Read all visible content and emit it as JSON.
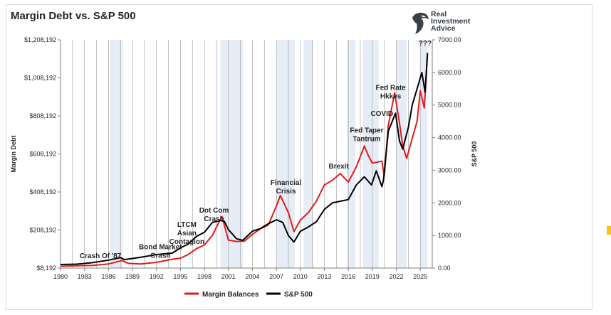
{
  "chart_data": {
    "type": "line",
    "title": "Margin Debt vs. S&P 500",
    "ylabel_left": "Margin Debt",
    "ylabel_right": "S&P 500",
    "xlim": [
      1980,
      2026.5
    ],
    "ylim_left": [
      8192,
      1208192
    ],
    "ylim_right": [
      0,
      7000
    ],
    "x_ticks": [
      "1980",
      "1983",
      "1986",
      "1989",
      "1992",
      "1995",
      "1998",
      "2001",
      "2004",
      "2007",
      "2010",
      "2013",
      "2016",
      "2019",
      "2022",
      "2025"
    ],
    "y_left_ticks": [
      "$8,192",
      "$208,192",
      "$408,192",
      "$608,192",
      "$808,192",
      "$1,008,192",
      "$1,208,192"
    ],
    "y_right_ticks": [
      "0.00",
      "1000.00",
      "2000.00",
      "3000.00",
      "4000.00",
      "5000.00",
      "6000.00",
      "7000.00"
    ],
    "recession_shading": [
      [
        1986.2,
        1987.8
      ],
      [
        2000,
        2002.8
      ],
      [
        2007,
        2009.3
      ],
      [
        2010.4,
        2011.6
      ],
      [
        2015.8,
        2016.9
      ],
      [
        2017.8,
        2019.8
      ],
      [
        2022,
        2023.3
      ],
      [
        2025,
        2025.9
      ]
    ],
    "series": [
      {
        "name": "Margin Balances",
        "axis": "left",
        "color": "#e41a1c",
        "x": [
          1980,
          1982,
          1984,
          1986,
          1987.7,
          1988.5,
          1990,
          1992,
          1994,
          1995,
          1996,
          1997,
          1998,
          1999,
          1999.7,
          2000.2,
          2001,
          2002,
          2003,
          2004,
          2005,
          2006,
          2007,
          2007.5,
          2008.5,
          2009.2,
          2010,
          2011,
          2012,
          2013,
          2014,
          2015,
          2016,
          2017,
          2018,
          2018.5,
          2019,
          2020.2,
          2020.5,
          2021,
          2021.8,
          2022.4,
          2022.8,
          2023.3,
          2024,
          2024.6,
          2025,
          2025.5,
          2025.9
        ],
        "y": [
          18000,
          20000,
          22000,
          30000,
          48000,
          33000,
          30000,
          38000,
          55000,
          60000,
          80000,
          110000,
          130000,
          180000,
          240000,
          278000,
          155000,
          148000,
          150000,
          185000,
          215000,
          235000,
          335000,
          390000,
          300000,
          200000,
          260000,
          300000,
          360000,
          445000,
          470000,
          505000,
          460000,
          540000,
          650000,
          600000,
          560000,
          570000,
          490000,
          760000,
          930000,
          770000,
          650000,
          585000,
          690000,
          780000,
          940000,
          850000,
          1130000
        ]
      },
      {
        "name": "S&P 500",
        "axis": "right",
        "color": "#000000",
        "x": [
          1980,
          1982,
          1984,
          1986,
          1987.5,
          1988,
          1990,
          1992,
          1994,
          1995,
          1996,
          1997,
          1998,
          1999,
          2000,
          2000.5,
          2001,
          2002,
          2002.8,
          2004,
          2005,
          2006,
          2007,
          2007.8,
          2008.5,
          2009.2,
          2010,
          2011,
          2012,
          2013,
          2014,
          2015,
          2016,
          2017,
          2018,
          2018.9,
          2019.5,
          2020.2,
          2020.4,
          2021,
          2021.9,
          2022.4,
          2022.8,
          2023.5,
          2024,
          2024.6,
          2025.2,
          2025.6,
          2025.9
        ],
        "y": [
          110,
          120,
          165,
          245,
          320,
          260,
          330,
          415,
          460,
          620,
          740,
          970,
          1100,
          1400,
          1460,
          1430,
          1180,
          900,
          850,
          1130,
          1210,
          1360,
          1480,
          1400,
          1000,
          800,
          1130,
          1260,
          1420,
          1800,
          2000,
          2050,
          2100,
          2550,
          2800,
          2550,
          2980,
          2500,
          2700,
          4200,
          4750,
          3900,
          3650,
          4300,
          5000,
          5500,
          6000,
          5400,
          6600
        ]
      }
    ],
    "annotations": [
      {
        "x": 1985,
        "y": 60000,
        "lines": [
          "Crash Of '87"
        ]
      },
      {
        "x": 1992.5,
        "y": 108000,
        "lines": [
          "Bond Market",
          "Crash"
        ]
      },
      {
        "x": 1995.8,
        "y": 225000,
        "lines": [
          "LTCM",
          "Asian",
          "Contagion"
        ]
      },
      {
        "x": 1999.2,
        "y": 300000,
        "lines": [
          "Dot Com",
          "Crash"
        ]
      },
      {
        "x": 2008.2,
        "y": 445000,
        "lines": [
          "Financial",
          "Crisis"
        ]
      },
      {
        "x": 2014.8,
        "y": 532000,
        "lines": [
          "Brexit"
        ]
      },
      {
        "x": 2018.3,
        "y": 720000,
        "lines": [
          "Fed Taper",
          "Tantrum"
        ]
      },
      {
        "x": 2020.2,
        "y": 808000,
        "lines": [
          "COVID"
        ]
      },
      {
        "x": 2021.3,
        "y": 945000,
        "lines": [
          "Fed Rate",
          "Hkkes"
        ]
      },
      {
        "x": 2025.6,
        "y": 1178000,
        "lines": [
          "???"
        ]
      }
    ],
    "legend_position": "bottom",
    "grid": "vertical"
  },
  "branding": {
    "logo_lines": [
      "Real",
      "Investment",
      "Advice"
    ]
  }
}
